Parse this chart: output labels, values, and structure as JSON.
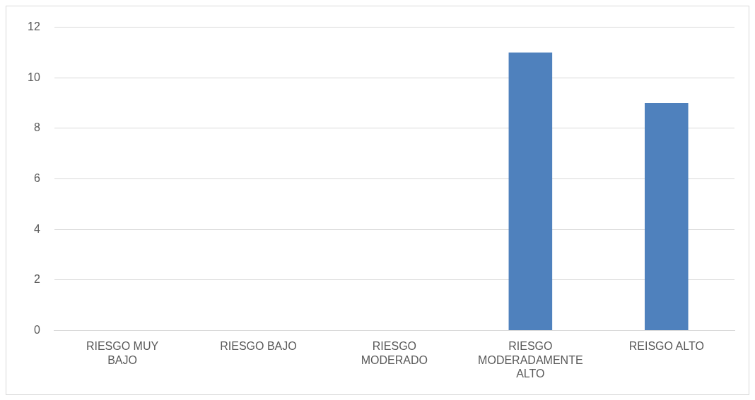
{
  "chart_data": {
    "type": "bar",
    "categories": [
      "RIESGO MUY BAJO",
      "RIESGO BAJO",
      "RIESGO MODERADO",
      "RIESGO MODERADAMENTE ALTO",
      "REISGO ALTO"
    ],
    "values": [
      0,
      0,
      0,
      11,
      9
    ],
    "color": "#4f81bd",
    "ylim": [
      0,
      12
    ],
    "yticks": [
      0,
      2,
      4,
      6,
      8,
      10,
      12
    ],
    "grid": "y",
    "legend": false
  }
}
